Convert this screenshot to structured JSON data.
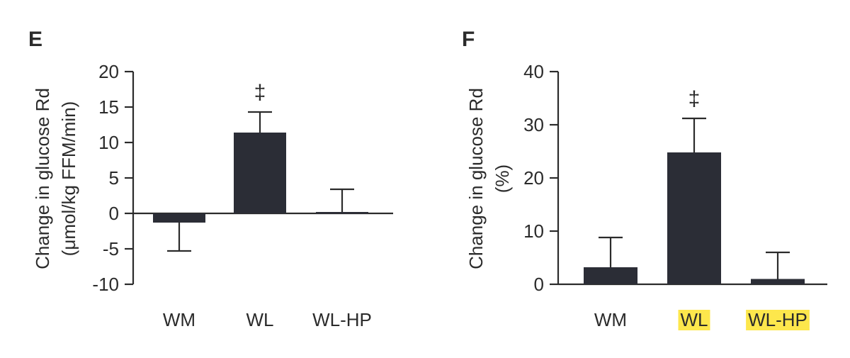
{
  "chart_data": [
    {
      "type": "bar",
      "panel": "E",
      "ylabel_lines": [
        "Change in glucose Rd",
        "(μmol/kg FFM/min)"
      ],
      "categories": [
        "WM",
        "WL",
        "WL-HP"
      ],
      "values": [
        -1.3,
        11.4,
        0.2
      ],
      "errors": [
        4.0,
        2.9,
        3.2
      ],
      "significance": [
        "",
        "‡",
        ""
      ],
      "highlighted": [
        false,
        false,
        false
      ],
      "ylim": [
        -10,
        20
      ],
      "yticks": [
        20,
        15,
        10,
        5,
        0,
        -5,
        -10
      ],
      "ytick_labels": [
        "20",
        "15",
        "10",
        "5",
        "0",
        "-5",
        "-10"
      ]
    },
    {
      "type": "bar",
      "panel": "F",
      "ylabel_lines": [
        "Change in glucose Rd",
        "(%)"
      ],
      "categories": [
        "WM",
        "WL",
        "WL-HP"
      ],
      "values": [
        3.2,
        24.8,
        1.0
      ],
      "errors": [
        5.6,
        6.4,
        5.0
      ],
      "significance": [
        "",
        "‡",
        ""
      ],
      "highlighted": [
        false,
        true,
        true
      ],
      "ylim": [
        0,
        40
      ],
      "yticks": [
        40,
        30,
        20,
        10,
        0
      ],
      "ytick_labels": [
        "40",
        "30",
        "20",
        "10",
        "0"
      ]
    }
  ],
  "colors": {
    "bar": "#2b2d36",
    "axis": "#2b2b2b",
    "highlight": "#fde74c"
  }
}
